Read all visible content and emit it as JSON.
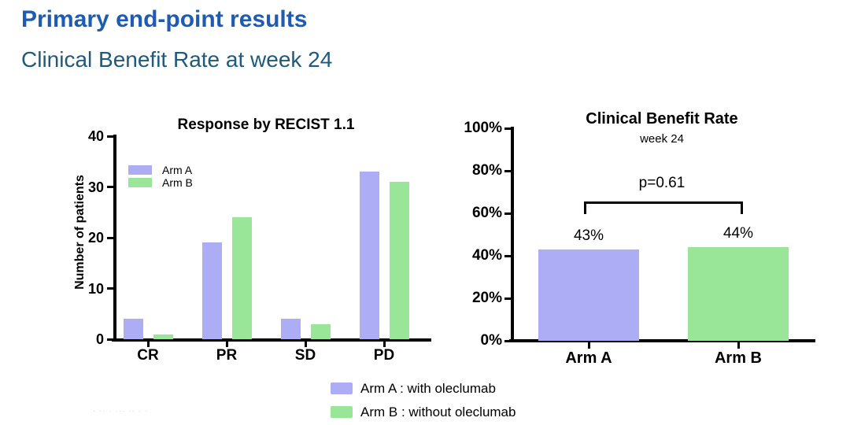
{
  "slide": {
    "title": "Primary end-point results",
    "subtitle": "Clinical Benefit Rate at week 24"
  },
  "colors": {
    "title_blue": "#1e5bb2",
    "subtitle_blue": "#1d5a7d",
    "arm_a": "#acadf5",
    "arm_b": "#99e699",
    "axis": "#000000",
    "faded_marks": "#d8d8d8"
  },
  "chart_data": [
    {
      "type": "bar",
      "title": "Response by RECIST 1.1",
      "xlabel": "",
      "ylabel": "Number of patients",
      "ylim": [
        0,
        40
      ],
      "yticks": [
        0,
        10,
        20,
        30,
        40
      ],
      "categories": [
        "CR",
        "PR",
        "SD",
        "PD"
      ],
      "series": [
        {
          "name": "Arm A",
          "values": [
            4,
            19,
            4,
            33
          ]
        },
        {
          "name": "Arm B",
          "values": [
            1,
            24,
            3,
            31
          ]
        }
      ],
      "legend_position": "inside-top-left",
      "grid": false
    },
    {
      "type": "bar",
      "title": "Clinical Benefit Rate",
      "subtitle": "week 24",
      "xlabel": "",
      "ylabel": "",
      "ylim": [
        0,
        100
      ],
      "yticks": [
        "0%",
        "20%",
        "40%",
        "60%",
        "80%",
        "100%"
      ],
      "categories": [
        "Arm A",
        "Arm B"
      ],
      "values": [
        43,
        44
      ],
      "value_labels": [
        "43%",
        "44%"
      ],
      "annotation": "p=0.61",
      "legend_position": "none",
      "grid": false
    }
  ],
  "footer_legend": [
    {
      "series": "Arm A",
      "label": "Arm A : with oleclumab"
    },
    {
      "series": "Arm B",
      "label": "Arm B : without oleclumab"
    }
  ],
  "footnote_marks": "· ·· · ··· ·· · ·"
}
